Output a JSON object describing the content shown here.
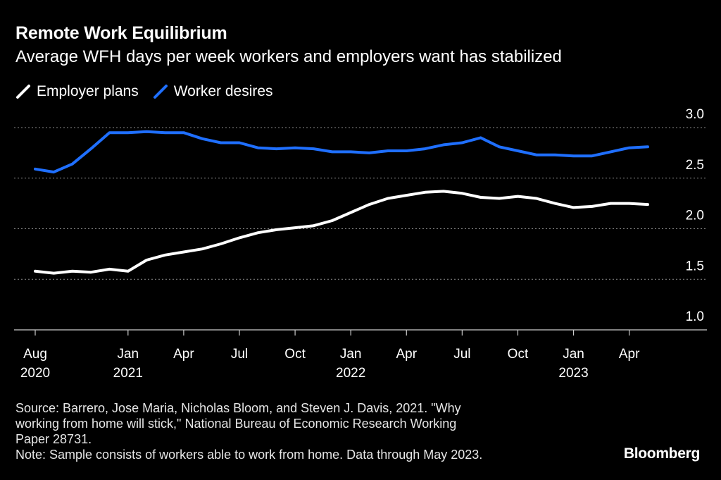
{
  "title": "Remote Work Equilibrium",
  "subtitle": "Average WFH days per week workers and employers want has stabilized",
  "legend": [
    {
      "label": "Employer plans",
      "color": "#ffffff"
    },
    {
      "label": "Worker desires",
      "color": "#1f6fff"
    }
  ],
  "footnote": {
    "source_lines": [
      "Source: Barrero, Jose Maria, Nicholas Bloom, and Steven J. Davis, 2021. \"Why",
      "working from home will stick,\" National Bureau of Economic Research Working",
      "Paper 28731."
    ],
    "note": "Note: Sample consists of workers able to work from home. Data through May 2023."
  },
  "brand": "Bloomberg",
  "chart_data": {
    "type": "line",
    "title": "Remote Work Equilibrium",
    "subtitle": "Average WFH days per week workers and employers want has stabilized",
    "xlabel": "",
    "ylabel": "",
    "ylim": [
      1.0,
      3.0
    ],
    "y_ticks": [
      "3.0",
      "2.5",
      "2.0",
      "1.5",
      "1.0"
    ],
    "y_tick_values": [
      3.0,
      2.5,
      2.0,
      1.5,
      1.0
    ],
    "x_range": [
      0,
      34
    ],
    "x_ticks": [
      {
        "index": 0,
        "label": "Aug",
        "year": "2020"
      },
      {
        "index": 5,
        "label": "Jan",
        "year": "2021"
      },
      {
        "index": 8,
        "label": "Apr",
        "year": ""
      },
      {
        "index": 11,
        "label": "Jul",
        "year": ""
      },
      {
        "index": 14,
        "label": "Oct",
        "year": ""
      },
      {
        "index": 17,
        "label": "Jan",
        "year": "2022"
      },
      {
        "index": 20,
        "label": "Apr",
        "year": ""
      },
      {
        "index": 23,
        "label": "Jul",
        "year": ""
      },
      {
        "index": 26,
        "label": "Oct",
        "year": ""
      },
      {
        "index": 29,
        "label": "Jan",
        "year": "2023"
      },
      {
        "index": 32,
        "label": "Apr",
        "year": ""
      }
    ],
    "x": [
      "2020-08",
      "2020-09",
      "2020-10",
      "2020-11",
      "2020-12",
      "2021-01",
      "2021-02",
      "2021-03",
      "2021-04",
      "2021-05",
      "2021-06",
      "2021-07",
      "2021-08",
      "2021-09",
      "2021-10",
      "2021-11",
      "2021-12",
      "2022-01",
      "2022-02",
      "2022-03",
      "2022-04",
      "2022-05",
      "2022-06",
      "2022-07",
      "2022-08",
      "2022-09",
      "2022-10",
      "2022-11",
      "2022-12",
      "2023-01",
      "2023-02",
      "2023-03",
      "2023-04",
      "2023-05"
    ],
    "series": [
      {
        "name": "Worker desires",
        "color": "#1f6fff",
        "values": [
          2.59,
          2.56,
          2.64,
          2.79,
          2.95,
          2.95,
          2.96,
          2.95,
          2.95,
          2.89,
          2.85,
          2.85,
          2.8,
          2.79,
          2.8,
          2.79,
          2.76,
          2.76,
          2.75,
          2.77,
          2.77,
          2.79,
          2.83,
          2.85,
          2.9,
          2.81,
          2.77,
          2.73,
          2.73,
          2.72,
          2.72,
          2.76,
          2.8,
          2.81
        ]
      },
      {
        "name": "Employer plans",
        "color": "#ffffff",
        "values": [
          1.58,
          1.56,
          1.58,
          1.57,
          1.6,
          1.58,
          1.69,
          1.74,
          1.77,
          1.8,
          1.85,
          1.91,
          1.96,
          1.99,
          2.01,
          2.03,
          2.08,
          2.16,
          2.24,
          2.3,
          2.33,
          2.36,
          2.37,
          2.35,
          2.31,
          2.3,
          2.32,
          2.3,
          2.25,
          2.21,
          2.22,
          2.25,
          2.25,
          2.24
        ]
      }
    ]
  }
}
